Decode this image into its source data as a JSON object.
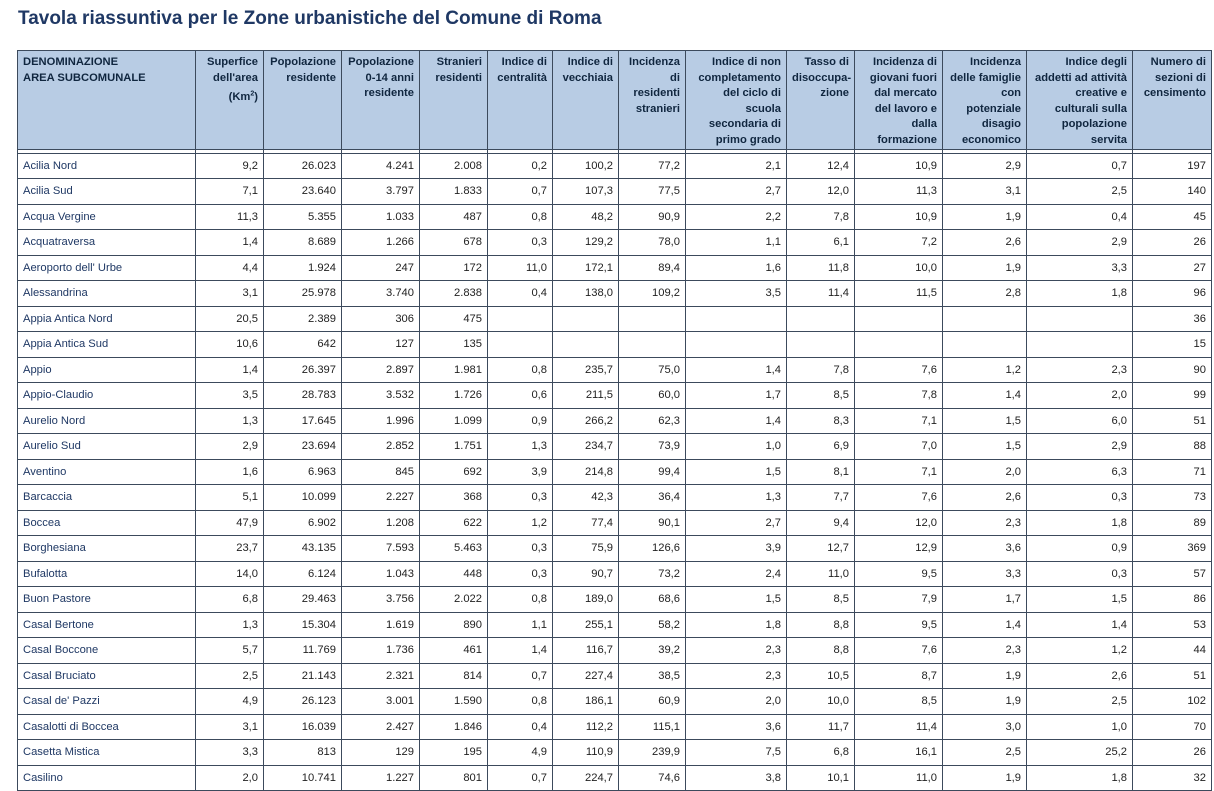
{
  "title": "Tavola riassuntiva per le Zone urbanistiche del Comune di Roma",
  "columns": [
    {
      "line1": "DENOMINAZIONE",
      "line2": "AREA SUBCOMUNALE"
    },
    {
      "text": "Superfice dell'area",
      "unit_pre": "(Km",
      "unit_sup": "2",
      "unit_post": ")"
    },
    {
      "text": "Popolazione residente"
    },
    {
      "text": "Popolazione 0-14 anni residente"
    },
    {
      "text": "Stranieri residenti"
    },
    {
      "text": "Indice di centralità"
    },
    {
      "text": "Indice di vecchiaia"
    },
    {
      "text": "Incidenza di residenti stranieri"
    },
    {
      "text": "Indice di non completamento del ciclo di scuola secondaria di primo grado"
    },
    {
      "text": "Tasso di disoccupa-zione"
    },
    {
      "text": "Incidenza di giovani fuori dal mercato del lavoro e dalla formazione"
    },
    {
      "text": "Incidenza delle famiglie con potenziale disagio economico"
    },
    {
      "text": "Indice degli addetti ad attività creative e culturali sulla popolazione servita"
    },
    {
      "text": "Numero di sezioni di censimento"
    }
  ],
  "rows": [
    [
      "Acilia Nord",
      "9,2",
      "26.023",
      "4.241",
      "2.008",
      "0,2",
      "100,2",
      "77,2",
      "2,1",
      "12,4",
      "10,9",
      "2,9",
      "0,7",
      "197"
    ],
    [
      "Acilia Sud",
      "7,1",
      "23.640",
      "3.797",
      "1.833",
      "0,7",
      "107,3",
      "77,5",
      "2,7",
      "12,0",
      "11,3",
      "3,1",
      "2,5",
      "140"
    ],
    [
      "Acqua Vergine",
      "11,3",
      "5.355",
      "1.033",
      "487",
      "0,8",
      "48,2",
      "90,9",
      "2,2",
      "7,8",
      "10,9",
      "1,9",
      "0,4",
      "45"
    ],
    [
      "Acquatraversa",
      "1,4",
      "8.689",
      "1.266",
      "678",
      "0,3",
      "129,2",
      "78,0",
      "1,1",
      "6,1",
      "7,2",
      "2,6",
      "2,9",
      "26"
    ],
    [
      "Aeroporto dell' Urbe",
      "4,4",
      "1.924",
      "247",
      "172",
      "11,0",
      "172,1",
      "89,4",
      "1,6",
      "11,8",
      "10,0",
      "1,9",
      "3,3",
      "27"
    ],
    [
      "Alessandrina",
      "3,1",
      "25.978",
      "3.740",
      "2.838",
      "0,4",
      "138,0",
      "109,2",
      "3,5",
      "11,4",
      "11,5",
      "2,8",
      "1,8",
      "96"
    ],
    [
      "Appia Antica Nord",
      "20,5",
      "2.389",
      "306",
      "475",
      "",
      "",
      "",
      "",
      "",
      "",
      "",
      "",
      "36"
    ],
    [
      "Appia Antica Sud",
      "10,6",
      "642",
      "127",
      "135",
      "",
      "",
      "",
      "",
      "",
      "",
      "",
      "",
      "15"
    ],
    [
      "Appio",
      "1,4",
      "26.397",
      "2.897",
      "1.981",
      "0,8",
      "235,7",
      "75,0",
      "1,4",
      "7,8",
      "7,6",
      "1,2",
      "2,3",
      "90"
    ],
    [
      "Appio-Claudio",
      "3,5",
      "28.783",
      "3.532",
      "1.726",
      "0,6",
      "211,5",
      "60,0",
      "1,7",
      "8,5",
      "7,8",
      "1,4",
      "2,0",
      "99"
    ],
    [
      "Aurelio Nord",
      "1,3",
      "17.645",
      "1.996",
      "1.099",
      "0,9",
      "266,2",
      "62,3",
      "1,4",
      "8,3",
      "7,1",
      "1,5",
      "6,0",
      "51"
    ],
    [
      "Aurelio Sud",
      "2,9",
      "23.694",
      "2.852",
      "1.751",
      "1,3",
      "234,7",
      "73,9",
      "1,0",
      "6,9",
      "7,0",
      "1,5",
      "2,9",
      "88"
    ],
    [
      "Aventino",
      "1,6",
      "6.963",
      "845",
      "692",
      "3,9",
      "214,8",
      "99,4",
      "1,5",
      "8,1",
      "7,1",
      "2,0",
      "6,3",
      "71"
    ],
    [
      "Barcaccia",
      "5,1",
      "10.099",
      "2.227",
      "368",
      "0,3",
      "42,3",
      "36,4",
      "1,3",
      "7,7",
      "7,6",
      "2,6",
      "0,3",
      "73"
    ],
    [
      "Boccea",
      "47,9",
      "6.902",
      "1.208",
      "622",
      "1,2",
      "77,4",
      "90,1",
      "2,7",
      "9,4",
      "12,0",
      "2,3",
      "1,8",
      "89"
    ],
    [
      "Borghesiana",
      "23,7",
      "43.135",
      "7.593",
      "5.463",
      "0,3",
      "75,9",
      "126,6",
      "3,9",
      "12,7",
      "12,9",
      "3,6",
      "0,9",
      "369"
    ],
    [
      "Bufalotta",
      "14,0",
      "6.124",
      "1.043",
      "448",
      "0,3",
      "90,7",
      "73,2",
      "2,4",
      "11,0",
      "9,5",
      "3,3",
      "0,3",
      "57"
    ],
    [
      "Buon Pastore",
      "6,8",
      "29.463",
      "3.756",
      "2.022",
      "0,8",
      "189,0",
      "68,6",
      "1,5",
      "8,5",
      "7,9",
      "1,7",
      "1,5",
      "86"
    ],
    [
      "Casal Bertone",
      "1,3",
      "15.304",
      "1.619",
      "890",
      "1,1",
      "255,1",
      "58,2",
      "1,8",
      "8,8",
      "9,5",
      "1,4",
      "1,4",
      "53"
    ],
    [
      "Casal Boccone",
      "5,7",
      "11.769",
      "1.736",
      "461",
      "1,4",
      "116,7",
      "39,2",
      "2,3",
      "8,8",
      "7,6",
      "2,3",
      "1,2",
      "44"
    ],
    [
      "Casal Bruciato",
      "2,5",
      "21.143",
      "2.321",
      "814",
      "0,7",
      "227,4",
      "38,5",
      "2,3",
      "10,5",
      "8,7",
      "1,9",
      "2,6",
      "51"
    ],
    [
      "Casal de' Pazzi",
      "4,9",
      "26.123",
      "3.001",
      "1.590",
      "0,8",
      "186,1",
      "60,9",
      "2,0",
      "10,0",
      "8,5",
      "1,9",
      "2,5",
      "102"
    ],
    [
      "Casalotti di Boccea",
      "3,1",
      "16.039",
      "2.427",
      "1.846",
      "0,4",
      "112,2",
      "115,1",
      "3,6",
      "11,7",
      "11,4",
      "3,0",
      "1,0",
      "70"
    ],
    [
      "Casetta Mistica",
      "3,3",
      "813",
      "129",
      "195",
      "4,9",
      "110,9",
      "239,9",
      "7,5",
      "6,8",
      "16,1",
      "2,5",
      "25,2",
      "26"
    ],
    [
      "Casilino",
      "2,0",
      "10.741",
      "1.227",
      "801",
      "0,7",
      "224,7",
      "74,6",
      "3,8",
      "10,1",
      "11,0",
      "1,9",
      "1,8",
      "32"
    ]
  ]
}
